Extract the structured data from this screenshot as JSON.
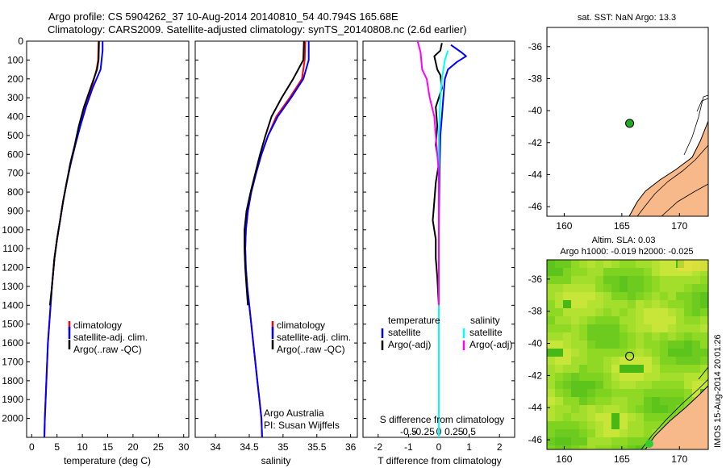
{
  "title_line1": "Argo profile: CS 5904262_37 10-Aug-2014 20140810_54 40.794S 165.68E",
  "title_line2": "Climatology: CARS2009. Satellite-adjusted climatology: synTS_20140808.nc (2.6d earlier)",
  "side_stamp": "IMOS 15-Aug-2014 20:01:26",
  "colors": {
    "climatology": "#ff0000",
    "satellite": "#0000ff",
    "argo": "#000000",
    "sal_satellite": "#00ffff",
    "sal_argo": "#ff00ff",
    "land": "#f7b98a",
    "marker": "#22aa22"
  },
  "chart_data": [
    {
      "type": "line",
      "id": "temperature-profile",
      "xlabel": "temperature (deg C)",
      "ylim": [
        2100,
        0
      ],
      "xlim": [
        -1,
        31
      ],
      "x_ticks": [
        0,
        5,
        10,
        15,
        20,
        25,
        30
      ],
      "y_ticks": [
        0,
        100,
        200,
        300,
        400,
        500,
        600,
        700,
        800,
        900,
        1000,
        1100,
        1200,
        1300,
        1400,
        1500,
        1600,
        1700,
        1800,
        1900,
        2000
      ],
      "legend": [
        "climatology",
        "satellite-adj. clim.",
        "Argo(..raw -QC)"
      ],
      "series": [
        {
          "name": "climatology",
          "color": "#ff0000",
          "points": [
            [
              13.2,
              0
            ],
            [
              13.1,
              100
            ],
            [
              12.8,
              150
            ],
            [
              11.8,
              250
            ],
            [
              10.6,
              350
            ],
            [
              9.5,
              450
            ],
            [
              8.6,
              550
            ],
            [
              7.7,
              650
            ],
            [
              6.9,
              750
            ],
            [
              6.2,
              850
            ],
            [
              5.6,
              950
            ],
            [
              5.0,
              1050
            ],
            [
              4.5,
              1150
            ],
            [
              4.0,
              1300
            ],
            [
              3.6,
              1450
            ],
            [
              3.2,
              1600
            ],
            [
              2.9,
              1800
            ],
            [
              2.6,
              2000
            ],
            [
              2.5,
              2100
            ]
          ]
        },
        {
          "name": "satellite-adj. clim.",
          "color": "#0000ff",
          "points": [
            [
              14.0,
              0
            ],
            [
              14.0,
              50
            ],
            [
              13.6,
              150
            ],
            [
              12.0,
              250
            ],
            [
              10.7,
              350
            ],
            [
              9.6,
              450
            ],
            [
              8.6,
              550
            ],
            [
              7.7,
              650
            ],
            [
              6.9,
              750
            ],
            [
              6.2,
              850
            ],
            [
              5.6,
              950
            ],
            [
              5.0,
              1050
            ],
            [
              4.5,
              1150
            ],
            [
              4.0,
              1300
            ],
            [
              3.6,
              1450
            ],
            [
              3.2,
              1600
            ],
            [
              2.9,
              1800
            ],
            [
              2.6,
              2000
            ],
            [
              2.5,
              2100
            ]
          ]
        },
        {
          "name": "Argo(..raw -QC)",
          "color": "#000000",
          "points": [
            [
              13.3,
              0
            ],
            [
              13.2,
              100
            ],
            [
              12.9,
              150
            ],
            [
              11.6,
              250
            ],
            [
              10.3,
              350
            ],
            [
              9.3,
              450
            ],
            [
              8.5,
              550
            ],
            [
              7.6,
              650
            ],
            [
              6.9,
              750
            ],
            [
              6.2,
              850
            ],
            [
              5.6,
              950
            ],
            [
              5.0,
              1050
            ],
            [
              4.5,
              1150
            ],
            [
              4.0,
              1300
            ],
            [
              3.6,
              1400
            ]
          ]
        }
      ]
    },
    {
      "type": "line",
      "id": "salinity-profile",
      "xlabel": "salinity",
      "ylim": [
        2100,
        0
      ],
      "xlim": [
        33.7,
        36.1
      ],
      "x_ticks": [
        34,
        34.5,
        35,
        35.5,
        36
      ],
      "legend": [
        "climatology",
        "satellite-adj. clim.",
        "Argo(..raw -QC)"
      ],
      "annotations": [
        "Argo Australia",
        "PI: Susan Wijffels"
      ],
      "series": [
        {
          "name": "climatology",
          "color": "#ff0000",
          "points": [
            [
              35.33,
              0
            ],
            [
              35.32,
              100
            ],
            [
              35.28,
              200
            ],
            [
              35.1,
              300
            ],
            [
              34.9,
              400
            ],
            [
              34.78,
              500
            ],
            [
              34.68,
              600
            ],
            [
              34.6,
              700
            ],
            [
              34.53,
              800
            ],
            [
              34.48,
              900
            ],
            [
              34.45,
              1000
            ],
            [
              34.44,
              1100
            ],
            [
              34.45,
              1200
            ],
            [
              34.47,
              1300
            ],
            [
              34.5,
              1400
            ],
            [
              34.53,
              1500
            ],
            [
              34.56,
              1600
            ],
            [
              34.59,
              1700
            ],
            [
              34.62,
              1800
            ],
            [
              34.65,
              1900
            ],
            [
              34.68,
              2000
            ],
            [
              34.69,
              2100
            ]
          ]
        },
        {
          "name": "satellite-adj. clim.",
          "color": "#0000ff",
          "points": [
            [
              35.38,
              0
            ],
            [
              35.38,
              100
            ],
            [
              35.3,
              200
            ],
            [
              35.12,
              300
            ],
            [
              34.92,
              400
            ],
            [
              34.78,
              500
            ],
            [
              34.68,
              600
            ],
            [
              34.6,
              700
            ],
            [
              34.53,
              800
            ],
            [
              34.48,
              900
            ],
            [
              34.45,
              1000
            ],
            [
              34.44,
              1100
            ],
            [
              34.45,
              1200
            ],
            [
              34.47,
              1300
            ],
            [
              34.5,
              1400
            ],
            [
              34.53,
              1500
            ],
            [
              34.56,
              1600
            ],
            [
              34.59,
              1700
            ],
            [
              34.62,
              1800
            ],
            [
              34.65,
              1900
            ],
            [
              34.68,
              2000
            ],
            [
              34.69,
              2100
            ]
          ]
        },
        {
          "name": "Argo(..raw -QC)",
          "color": "#000000",
          "points": [
            [
              35.31,
              0
            ],
            [
              35.3,
              100
            ],
            [
              35.15,
              200
            ],
            [
              34.98,
              300
            ],
            [
              34.83,
              400
            ],
            [
              34.74,
              500
            ],
            [
              34.66,
              600
            ],
            [
              34.59,
              700
            ],
            [
              34.52,
              800
            ],
            [
              34.46,
              900
            ],
            [
              34.43,
              1000
            ],
            [
              34.43,
              1100
            ],
            [
              34.44,
              1200
            ],
            [
              34.46,
              1300
            ],
            [
              34.48,
              1400
            ]
          ]
        }
      ]
    },
    {
      "type": "line",
      "id": "difference-profile",
      "xlabel": "T difference from climatology",
      "xlabel2": "S difference from climatology",
      "ylim": [
        2100,
        0
      ],
      "xlim": [
        -2.5,
        2.5
      ],
      "x_ticks": [
        -2,
        -1,
        0,
        1,
        2
      ],
      "x_ticks_top_values": [
        -1,
        -0.5,
        0,
        0.5,
        1
      ],
      "x_ticks_top_labels": [
        "-0.5",
        "-0.25",
        "0",
        "0.25",
        "0.5"
      ],
      "legend_headers": [
        "temperature",
        "salinity"
      ],
      "legend": [
        "satellite",
        "Argo(-adj)",
        "satellite",
        "Argo(-adj)"
      ],
      "series": [
        {
          "name": "satellite",
          "group": "temperature",
          "color": "#0000ff",
          "points": [
            [
              0.4,
              20
            ],
            [
              0.75,
              60
            ],
            [
              0.9,
              80
            ],
            [
              0.6,
              110
            ],
            [
              0.3,
              150
            ],
            [
              0.2,
              200
            ],
            [
              0.15,
              300
            ],
            [
              0.1,
              400
            ],
            [
              0.05,
              500
            ],
            [
              0.02,
              700
            ],
            [
              0,
              1000
            ],
            [
              0,
              2100
            ]
          ]
        },
        {
          "name": "Argo(-adj)",
          "group": "temperature",
          "color": "#000000",
          "points": [
            [
              0.1,
              10
            ],
            [
              0.05,
              50
            ],
            [
              -0.15,
              80
            ],
            [
              -0.05,
              150
            ],
            [
              0.05,
              180
            ],
            [
              0.1,
              250
            ],
            [
              -0.1,
              350
            ],
            [
              -0.05,
              450
            ],
            [
              -0.1,
              550
            ],
            [
              0.0,
              650
            ],
            [
              -0.1,
              750
            ],
            [
              -0.15,
              850
            ],
            [
              -0.2,
              950
            ],
            [
              -0.1,
              1050
            ],
            [
              -0.1,
              1150
            ],
            [
              -0.05,
              1250
            ],
            [
              0.0,
              1400
            ]
          ]
        },
        {
          "name": "satellite",
          "group": "salinity",
          "color": "#00ffff",
          "points": [
            [
              0.3,
              50
            ],
            [
              0.2,
              100
            ],
            [
              0.1,
              200
            ],
            [
              0.05,
              300
            ],
            [
              0,
              500
            ],
            [
              0,
              700
            ],
            [
              0,
              900
            ],
            [
              0,
              1500
            ],
            [
              0,
              2100
            ]
          ]
        },
        {
          "name": "Argo(-adj)",
          "group": "salinity",
          "color": "#ff00ff",
          "points": [
            [
              -0.7,
              0
            ],
            [
              -0.6,
              60
            ],
            [
              -0.55,
              150
            ],
            [
              -0.4,
              200
            ],
            [
              -0.3,
              300
            ],
            [
              -0.15,
              400
            ],
            [
              -0.1,
              500
            ],
            [
              -0.05,
              600
            ],
            [
              0.0,
              700
            ],
            [
              0.0,
              900
            ],
            [
              0.0,
              1100
            ],
            [
              0.0,
              1300
            ],
            [
              0.0,
              1400
            ]
          ]
        }
      ]
    },
    {
      "type": "scatter",
      "id": "sst-map",
      "title": "sat. SST: NaN Argo: 13.3",
      "xlim": [
        158.5,
        172.5
      ],
      "ylim": [
        -46.6,
        -34.8
      ],
      "x_ticks": [
        160,
        165,
        170
      ],
      "y_ticks": [
        -46,
        -44,
        -42,
        -40,
        -38,
        -36
      ],
      "points": [
        [
          165.68,
          -40.794
        ]
      ]
    },
    {
      "type": "heatmap",
      "id": "sla-map",
      "title": "Altim. SLA: 0.03",
      "subtitle": "Argo h1000: -0.019 h2000: -0.025",
      "xlim": [
        158.5,
        172.5
      ],
      "ylim": [
        -46.6,
        -34.8
      ],
      "x_ticks": [
        160,
        165,
        170
      ],
      "y_ticks": [
        -46,
        -44,
        -42,
        -40,
        -38,
        -36
      ],
      "points": [
        [
          165.68,
          -40.794
        ]
      ]
    }
  ]
}
